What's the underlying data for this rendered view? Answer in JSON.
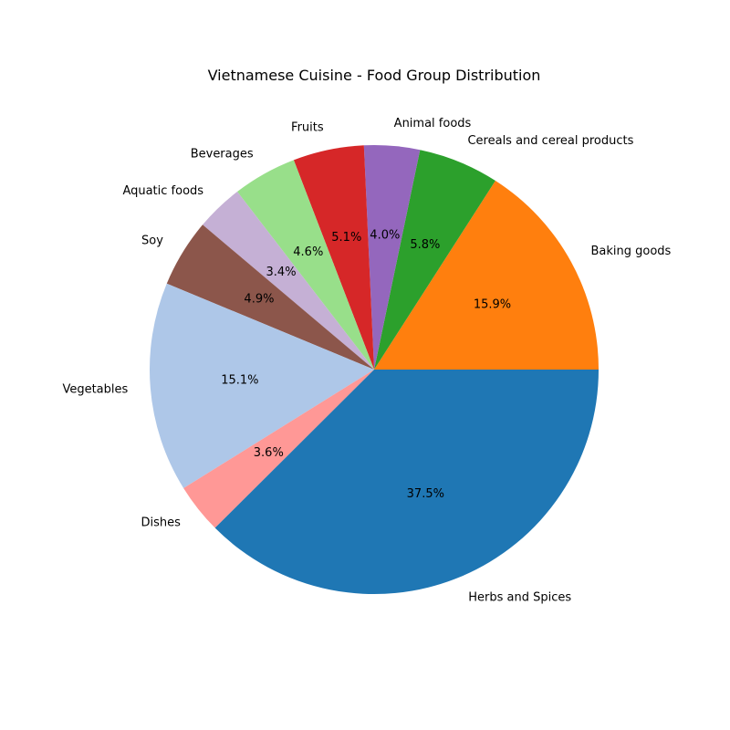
{
  "chart_data": {
    "type": "pie",
    "title": "Vietnamese Cuisine - Food Group Distribution",
    "start_angle_deg": 0,
    "direction": "counterclockwise",
    "slices": [
      {
        "label": "Baking goods",
        "value": 15.9,
        "pct_label": "15.9%",
        "color": "#ff7f0e"
      },
      {
        "label": "Cereals and cereal products",
        "value": 5.8,
        "pct_label": "5.8%",
        "color": "#2ca02c"
      },
      {
        "label": "Animal foods",
        "value": 4.0,
        "pct_label": "4.0%",
        "color": "#9467bd"
      },
      {
        "label": "Fruits",
        "value": 5.1,
        "pct_label": "5.1%",
        "color": "#d62728"
      },
      {
        "label": "Beverages",
        "value": 4.6,
        "pct_label": "4.6%",
        "color": "#98df8a"
      },
      {
        "label": "Aquatic foods",
        "value": 3.4,
        "pct_label": "3.4%",
        "color": "#c5b0d5"
      },
      {
        "label": "Soy",
        "value": 4.9,
        "pct_label": "4.9%",
        "color": "#8c564b"
      },
      {
        "label": "Vegetables",
        "value": 15.1,
        "pct_label": "15.1%",
        "color": "#aec7e8"
      },
      {
        "label": "Dishes",
        "value": 3.6,
        "pct_label": "3.6%",
        "color": "#ff9896"
      },
      {
        "label": "Herbs and Spices",
        "value": 37.5,
        "pct_label": "37.5%",
        "color": "#1f77b4"
      }
    ]
  }
}
